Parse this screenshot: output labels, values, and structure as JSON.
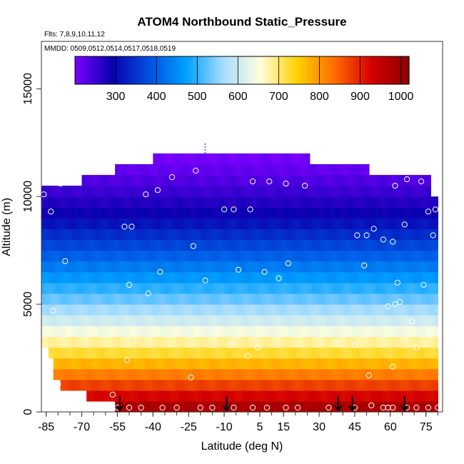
{
  "chart_data": {
    "type": "heatmap",
    "title": "ATOM4 Northbound Static_Pressure",
    "flights_note": "Flts: 7,8,9,10,11,12",
    "dates_note": "MMDD: 0509,0512,0514,0517,0518,0519",
    "xlabel": "Latitude (deg N)",
    "ylabel": "Altitude (m)",
    "xlim": [
      -87,
      82
    ],
    "ylim": [
      0,
      17200
    ],
    "x_tick_values": [
      -85,
      -70,
      -55,
      -40,
      -25,
      -10,
      5,
      15,
      30,
      45,
      60,
      75
    ],
    "x_tick_labels": [
      "-85",
      "-70",
      "-55",
      "-40",
      "-25",
      "-10",
      "5",
      "15",
      "30",
      "45",
      "60",
      "75"
    ],
    "y_tick_values": [
      0,
      5000,
      10000,
      15000
    ],
    "y_tick_labels": [
      "0",
      "5000",
      "10000",
      "15000"
    ],
    "colorbar": {
      "min": 200,
      "max": 1020,
      "tick_values": [
        300,
        400,
        500,
        600,
        700,
        800,
        900,
        1000
      ],
      "tick_labels": [
        "300",
        "400",
        "500",
        "600",
        "700",
        "800",
        "900",
        "1000"
      ],
      "colors": [
        "#7a00ff",
        "#0a00b0",
        "#0050e0",
        "#00a0ff",
        "#a8dcff",
        "#ffffdc",
        "#ffd000",
        "#ff6a00",
        "#d40000",
        "#8a0000"
      ]
    },
    "altitude_bin_m": 500,
    "pressure_profile_hpa": [
      {
        "alt": 0,
        "p": 1005
      },
      {
        "alt": 1000,
        "p": 900
      },
      {
        "alt": 2000,
        "p": 795
      },
      {
        "alt": 3000,
        "p": 700
      },
      {
        "alt": 4000,
        "p": 625
      },
      {
        "alt": 5000,
        "p": 545
      },
      {
        "alt": 6000,
        "p": 480
      },
      {
        "alt": 7000,
        "p": 415
      },
      {
        "alt": 8000,
        "p": 355
      },
      {
        "alt": 9000,
        "p": 300
      },
      {
        "alt": 10000,
        "p": 260
      },
      {
        "alt": 11000,
        "p": 225
      },
      {
        "alt": 12000,
        "p": 200
      }
    ],
    "coverage_top_m": [
      {
        "lat": -87,
        "top": 10500
      },
      {
        "lat": -71,
        "top": 10500
      },
      {
        "lat": -70,
        "top": 11000
      },
      {
        "lat": -57,
        "top": 11000
      },
      {
        "lat": -56,
        "top": 11500
      },
      {
        "lat": -41,
        "top": 11500
      },
      {
        "lat": -40,
        "top": 12000
      },
      {
        "lat": -5,
        "top": 12000
      },
      {
        "lat": 25,
        "top": 12000
      },
      {
        "lat": 26,
        "top": 11500
      },
      {
        "lat": 50,
        "top": 11500
      },
      {
        "lat": 51,
        "top": 11000
      },
      {
        "lat": 76,
        "top": 11000
      },
      {
        "lat": 77,
        "top": 10000
      },
      {
        "lat": 82,
        "top": 9500
      }
    ],
    "coverage_bottom_m": [
      {
        "lat": -87,
        "bottom": 3000
      },
      {
        "lat": -84,
        "bottom": 2500
      },
      {
        "lat": -82,
        "bottom": 1500
      },
      {
        "lat": -79,
        "bottom": 1000
      },
      {
        "lat": -68,
        "bottom": 500
      },
      {
        "lat": -56,
        "bottom": 0
      },
      {
        "lat": 82,
        "bottom": 0
      }
    ],
    "coverage_right_lat": 80,
    "sample_points": [
      {
        "lat": -86,
        "alt": 10100
      },
      {
        "lat": -83,
        "alt": 9300
      },
      {
        "lat": -79,
        "alt": 10600
      },
      {
        "lat": -77,
        "alt": 7000
      },
      {
        "lat": -82,
        "alt": 4700
      },
      {
        "lat": -80,
        "alt": 1300
      },
      {
        "lat": -57,
        "alt": 800
      },
      {
        "lat": -52,
        "alt": 8600
      },
      {
        "lat": -49,
        "alt": 8600
      },
      {
        "lat": -50,
        "alt": 5900
      },
      {
        "lat": -51,
        "alt": 2400
      },
      {
        "lat": -43,
        "alt": 10100
      },
      {
        "lat": -38,
        "alt": 10300
      },
      {
        "lat": -32,
        "alt": 10900
      },
      {
        "lat": -37,
        "alt": 6500
      },
      {
        "lat": -42,
        "alt": 5500
      },
      {
        "lat": -22,
        "alt": 11200
      },
      {
        "lat": -23,
        "alt": 7700
      },
      {
        "lat": -24,
        "alt": 1600
      },
      {
        "lat": -18,
        "alt": 6100
      },
      {
        "lat": -10,
        "alt": 9400
      },
      {
        "lat": -6,
        "alt": 9400
      },
      {
        "lat": 1,
        "alt": 9400
      },
      {
        "lat": -4,
        "alt": 6600
      },
      {
        "lat": 2,
        "alt": 10700
      },
      {
        "lat": 9,
        "alt": 10700
      },
      {
        "lat": 16,
        "alt": 10600
      },
      {
        "lat": 24,
        "alt": 10500
      },
      {
        "lat": 7,
        "alt": 6500
      },
      {
        "lat": 13,
        "alt": 6200
      },
      {
        "lat": 17,
        "alt": 6900
      },
      {
        "lat": 4,
        "alt": 3000
      },
      {
        "lat": 0,
        "alt": 2600
      },
      {
        "lat": 47,
        "alt": 11700
      },
      {
        "lat": 55,
        "alt": 11200
      },
      {
        "lat": 62,
        "alt": 10500
      },
      {
        "lat": 67,
        "alt": 10800
      },
      {
        "lat": 73,
        "alt": 10700
      },
      {
        "lat": 79,
        "alt": 9400
      },
      {
        "lat": 76,
        "alt": 9300
      },
      {
        "lat": 66,
        "alt": 8700
      },
      {
        "lat": 53,
        "alt": 8500
      },
      {
        "lat": 46,
        "alt": 8200
      },
      {
        "lat": 50,
        "alt": 8200
      },
      {
        "lat": 57,
        "alt": 8000
      },
      {
        "lat": 61,
        "alt": 7900
      },
      {
        "lat": 78,
        "alt": 8200
      },
      {
        "lat": 49,
        "alt": 6800
      },
      {
        "lat": 63,
        "alt": 6000
      },
      {
        "lat": 74,
        "alt": 5900
      },
      {
        "lat": 82,
        "alt": 6300
      },
      {
        "lat": 62,
        "alt": 5000
      },
      {
        "lat": 64,
        "alt": 5100
      },
      {
        "lat": 59,
        "alt": 4900
      },
      {
        "lat": 69,
        "alt": 4200
      },
      {
        "lat": 77,
        "alt": 3600
      },
      {
        "lat": 71,
        "alt": 3000
      },
      {
        "lat": 45,
        "alt": 3100
      },
      {
        "lat": 51,
        "alt": 1700
      },
      {
        "lat": 61,
        "alt": 2100
      },
      {
        "lat": -14,
        "alt": 3800
      },
      {
        "lat": -7,
        "alt": 3100
      },
      {
        "lat": 37,
        "alt": 3200
      },
      {
        "lat": -47,
        "alt": 3300
      },
      {
        "lat": -55,
        "alt": 200
      },
      {
        "lat": -50,
        "alt": 200
      },
      {
        "lat": -45,
        "alt": 200
      },
      {
        "lat": -36,
        "alt": 200
      },
      {
        "lat": -30,
        "alt": 200
      },
      {
        "lat": -20,
        "alt": 200
      },
      {
        "lat": -15,
        "alt": 200
      },
      {
        "lat": -6,
        "alt": 200
      },
      {
        "lat": 2,
        "alt": 200
      },
      {
        "lat": 8,
        "alt": 200
      },
      {
        "lat": 16,
        "alt": 200
      },
      {
        "lat": 21,
        "alt": 200
      },
      {
        "lat": 34,
        "alt": 200
      },
      {
        "lat": 45,
        "alt": 200
      },
      {
        "lat": 52,
        "alt": 300
      },
      {
        "lat": 57,
        "alt": 200
      },
      {
        "lat": 59,
        "alt": 200
      },
      {
        "lat": 61,
        "alt": 200
      },
      {
        "lat": 67,
        "alt": 200
      },
      {
        "lat": 71,
        "alt": 200
      },
      {
        "lat": 76,
        "alt": 200
      },
      {
        "lat": 80,
        "alt": 200
      }
    ],
    "marker_lats": [
      -54,
      -9,
      38,
      44,
      66
    ],
    "dashed_marker": {
      "lat": -18,
      "alt_from": 12000,
      "alt_to": 12500
    }
  }
}
